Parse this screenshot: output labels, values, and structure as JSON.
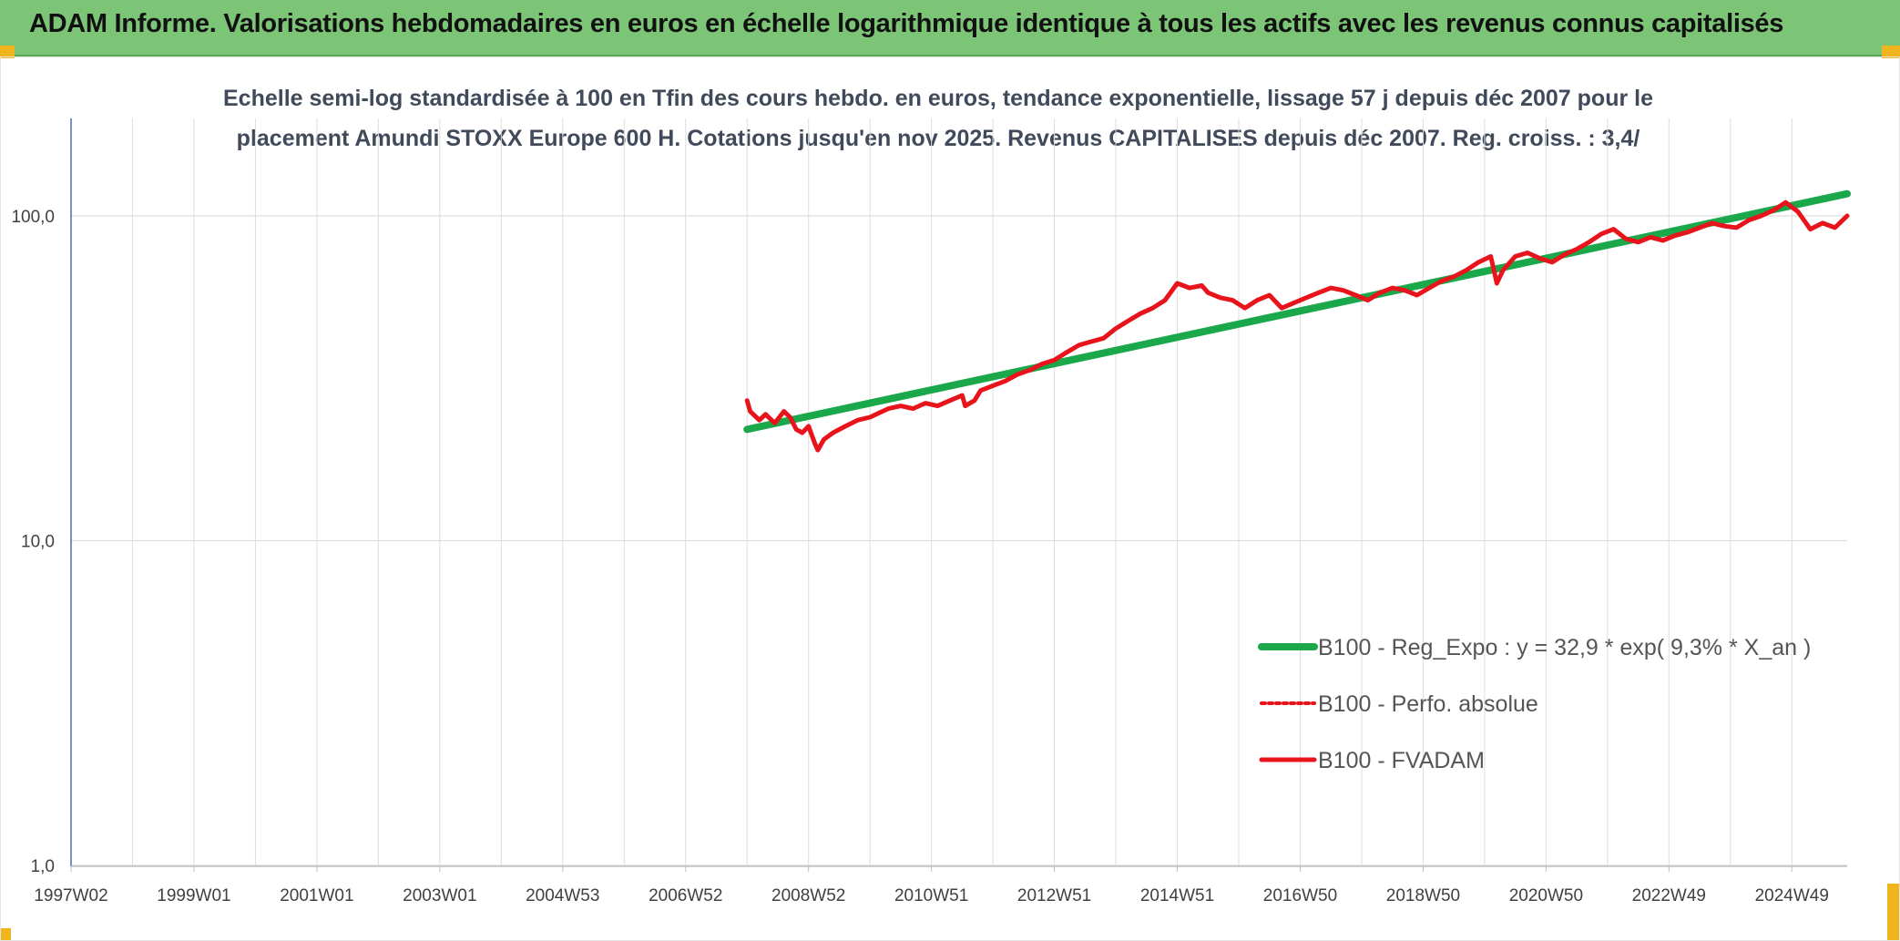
{
  "header": {
    "title": "ADAM Informe. Valorisations hebdomadaires en euros en échelle logarithmique identique à tous les actifs avec les revenus connus capitalisés"
  },
  "colors": {
    "header_bg": "#7cc576",
    "corner": "#f0b41c",
    "regression": "#1aa84a",
    "fvadam": "#e8141c",
    "perfo": "#e8141c",
    "grid": "#dddddd"
  },
  "chart_data": {
    "type": "line",
    "title_lines": [
      "Echelle semi-log standardisée à 100 en Tfin des cours hebdo. en euros, tendance exponentielle, lissage 57 j depuis déc 2007 pour le",
      "placement Amundi STOXX Europe 600 H. Cotations jusqu'en nov 2025. Revenus CAPITALISES depuis déc 2007. Reg. croiss. : 3,4/"
    ],
    "y_scale": "log",
    "ylim": [
      1,
      200
    ],
    "y_ticks": [
      1,
      10,
      100
    ],
    "y_tick_labels": [
      "1,0",
      "10,0",
      "100,0"
    ],
    "xlim": [
      1997.0,
      2025.9
    ],
    "x_tick_values": [
      1997.0,
      1999.0,
      2001.0,
      2003.0,
      2005.0,
      2007.0,
      2009.0,
      2011.0,
      2013.0,
      2015.0,
      2017.0,
      2019.0,
      2021.0,
      2023.0,
      2025.0
    ],
    "x_tick_labels": [
      "1997W02",
      "1999W01",
      "2001W01",
      "2003W01",
      "2004W53",
      "2006W52",
      "2008W52",
      "2010W51",
      "2012W51",
      "2014W51",
      "2016W50",
      "2018W50",
      "2020W50",
      "2022W49",
      "2024W49"
    ],
    "grid": true,
    "legend_position": "bottom-right",
    "series": [
      {
        "name": "B100 - Reg_Expo : y = 32,9 * exp( 9,3% *  X_an )",
        "style": "solid-green",
        "x": [
          2008.0,
          2025.9
        ],
        "y": [
          22.0,
          117.0
        ]
      },
      {
        "name": "B100 - Perfo. absolue",
        "style": "dotted-red",
        "x": [],
        "y": []
      },
      {
        "name": "B100 - FVADAM",
        "style": "solid-red",
        "x": [
          2008.0,
          2008.05,
          2008.2,
          2008.3,
          2008.45,
          2008.6,
          2008.7,
          2008.8,
          2008.9,
          2009.0,
          2009.1,
          2009.15,
          2009.25,
          2009.4,
          2009.6,
          2009.8,
          2010.0,
          2010.2,
          2010.3,
          2010.5,
          2010.7,
          2010.9,
          2011.1,
          2011.3,
          2011.5,
          2011.55,
          2011.7,
          2011.8,
          2012.0,
          2012.2,
          2012.4,
          2012.6,
          2012.8,
          2013.0,
          2013.2,
          2013.4,
          2013.6,
          2013.8,
          2014.0,
          2014.2,
          2014.4,
          2014.6,
          2014.8,
          2015.0,
          2015.2,
          2015.4,
          2015.5,
          2015.7,
          2015.9,
          2016.1,
          2016.3,
          2016.5,
          2016.7,
          2016.9,
          2017.1,
          2017.3,
          2017.5,
          2017.7,
          2017.9,
          2018.1,
          2018.3,
          2018.5,
          2018.7,
          2018.9,
          2019.1,
          2019.3,
          2019.5,
          2019.7,
          2019.9,
          2020.1,
          2020.2,
          2020.3,
          2020.5,
          2020.7,
          2020.9,
          2021.1,
          2021.3,
          2021.5,
          2021.7,
          2021.9,
          2022.1,
          2022.3,
          2022.5,
          2022.7,
          2022.9,
          2023.1,
          2023.3,
          2023.5,
          2023.7,
          2023.9,
          2024.1,
          2024.3,
          2024.5,
          2024.7,
          2024.9,
          2025.1,
          2025.3,
          2025.5,
          2025.7,
          2025.9
        ],
        "y": [
          27.0,
          25.0,
          23.5,
          24.5,
          23.0,
          25.0,
          24.0,
          22.0,
          21.5,
          22.5,
          20.0,
          19.0,
          20.5,
          21.5,
          22.5,
          23.5,
          24.0,
          25.0,
          25.5,
          26.0,
          25.5,
          26.5,
          26.0,
          27.0,
          28.0,
          26.0,
          27.0,
          29.0,
          30.0,
          31.0,
          32.5,
          33.5,
          35.0,
          36.0,
          38.0,
          40.0,
          41.0,
          42.0,
          45.0,
          47.5,
          50.0,
          52.0,
          55.0,
          62.0,
          60.0,
          61.0,
          58.0,
          56.0,
          55.0,
          52.0,
          55.0,
          57.0,
          52.0,
          54.0,
          56.0,
          58.0,
          60.0,
          59.0,
          57.0,
          55.0,
          58.0,
          60.0,
          59.0,
          57.0,
          60.0,
          63.0,
          65.0,
          68.0,
          72.0,
          75.0,
          62.0,
          68.0,
          75.0,
          77.0,
          74.0,
          72.0,
          76.0,
          79.0,
          83.0,
          88.0,
          91.0,
          85.0,
          83.0,
          86.0,
          84.0,
          87.0,
          89.0,
          92.0,
          95.0,
          93.0,
          92.0,
          97.0,
          100.0,
          104.0,
          110.0,
          103.0,
          91.0,
          95.0,
          92.0,
          100.0
        ]
      }
    ]
  }
}
